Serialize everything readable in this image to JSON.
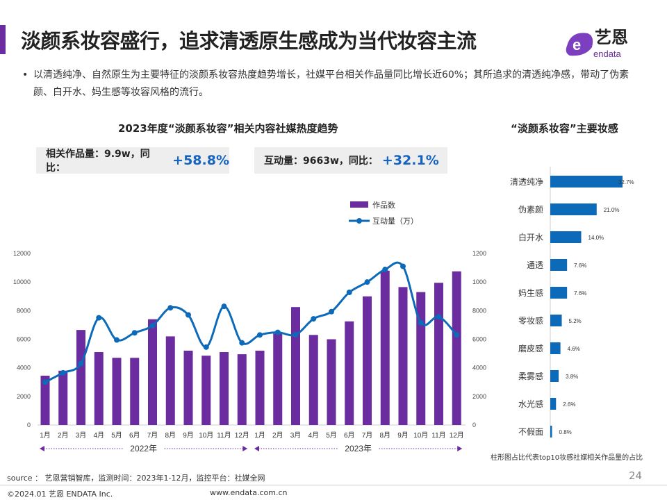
{
  "title": "淡颜系妆容盛行，追求清透原生感成为当代妆容主流",
  "logo": {
    "cn": "艺恩",
    "en": "endata"
  },
  "bullet": "以清透纯净、自然原生为主要特征的淡颜系妆容热度趋势增长，社媒平台相关作品量同比增长近60%；其所追求的清透纯净感，带动了伪素颜、白开水、妈生感等妆容风格的流行。",
  "left_title": "2023年度“淡颜系妆容”相关内容社媒热度趋势",
  "kpi1": {
    "label": "相关作品量：9.9w，同比：",
    "value": "+58.8%"
  },
  "kpi2": {
    "label": "互动量：9663w，同比：",
    "value": "+32.1%"
  },
  "right_title": "“淡颜系妆容”主要妆感",
  "right_note": "柱形图占比代表top10妆感社媒相关作品量的占比",
  "source": "source ： 艺恩营销智库，监测时间：2023年1-12月，监控平台：社媒全网",
  "copyright": "©2024.01  艺恩 ENDATA Inc.",
  "website": "www.endata.com.cn",
  "page_number": "24",
  "colors": {
    "bar": "#6a2c9e",
    "line": "#0d6ab8",
    "hbar": "#0d6ab8"
  },
  "chart_data": [
    {
      "type": "bar+line",
      "title": "2023年度“淡颜系妆容”相关内容社媒热度趋势",
      "categories": [
        "1月",
        "2月",
        "3月",
        "4月",
        "5月",
        "6月",
        "7月",
        "8月",
        "9月",
        "10月",
        "11月",
        "12月",
        "1月",
        "2月",
        "3月",
        "4月",
        "5月",
        "6月",
        "7月",
        "8月",
        "9月",
        "10月",
        "11月",
        "12月"
      ],
      "groups": [
        "2022年",
        "2023年"
      ],
      "left_ticks": [
        "0",
        "2000",
        "4000",
        "6000",
        "8000",
        "10000",
        "12000"
      ],
      "right_ticks": [
        "0",
        "200",
        "400",
        "600",
        "800",
        "1000",
        "1200"
      ],
      "ylim_left": [
        0,
        12000
      ],
      "ylim_right": [
        0,
        1200
      ],
      "legend": [
        "作品数",
        "互动量（万）"
      ],
      "series": [
        {
          "name": "作品数",
          "axis": "left",
          "values": [
            3450,
            3800,
            6650,
            5100,
            4700,
            4700,
            7400,
            6200,
            5200,
            4850,
            5100,
            4950,
            5200,
            6400,
            8250,
            6300,
            6000,
            7250,
            9000,
            10800,
            9650,
            9300,
            9950,
            10750
          ]
        },
        {
          "name": "互动量（万）",
          "axis": "right",
          "values": [
            300,
            365,
            430,
            750,
            595,
            645,
            695,
            820,
            770,
            545,
            830,
            575,
            630,
            648,
            632,
            743,
            793,
            928,
            1000,
            1088,
            1110,
            715,
            757,
            630
          ]
        }
      ]
    },
    {
      "type": "bar",
      "orientation": "horizontal",
      "title": "“淡颜系妆容”主要妆感",
      "categories": [
        "清透纯净",
        "伪素颜",
        "白开水",
        "通透",
        "妈生感",
        "零妆感",
        "磨皮感",
        "柔雾感",
        "水光感",
        "不假面"
      ],
      "values": [
        32.7,
        21.0,
        14.0,
        7.6,
        7.6,
        5.2,
        4.6,
        3.8,
        2.6,
        0.8
      ],
      "labels": [
        "32.7%",
        "21.0%",
        "14.0%",
        "7.6%",
        "7.6%",
        "5.2%",
        "4.6%",
        "3.8%",
        "2.6%",
        "0.8%"
      ]
    }
  ]
}
